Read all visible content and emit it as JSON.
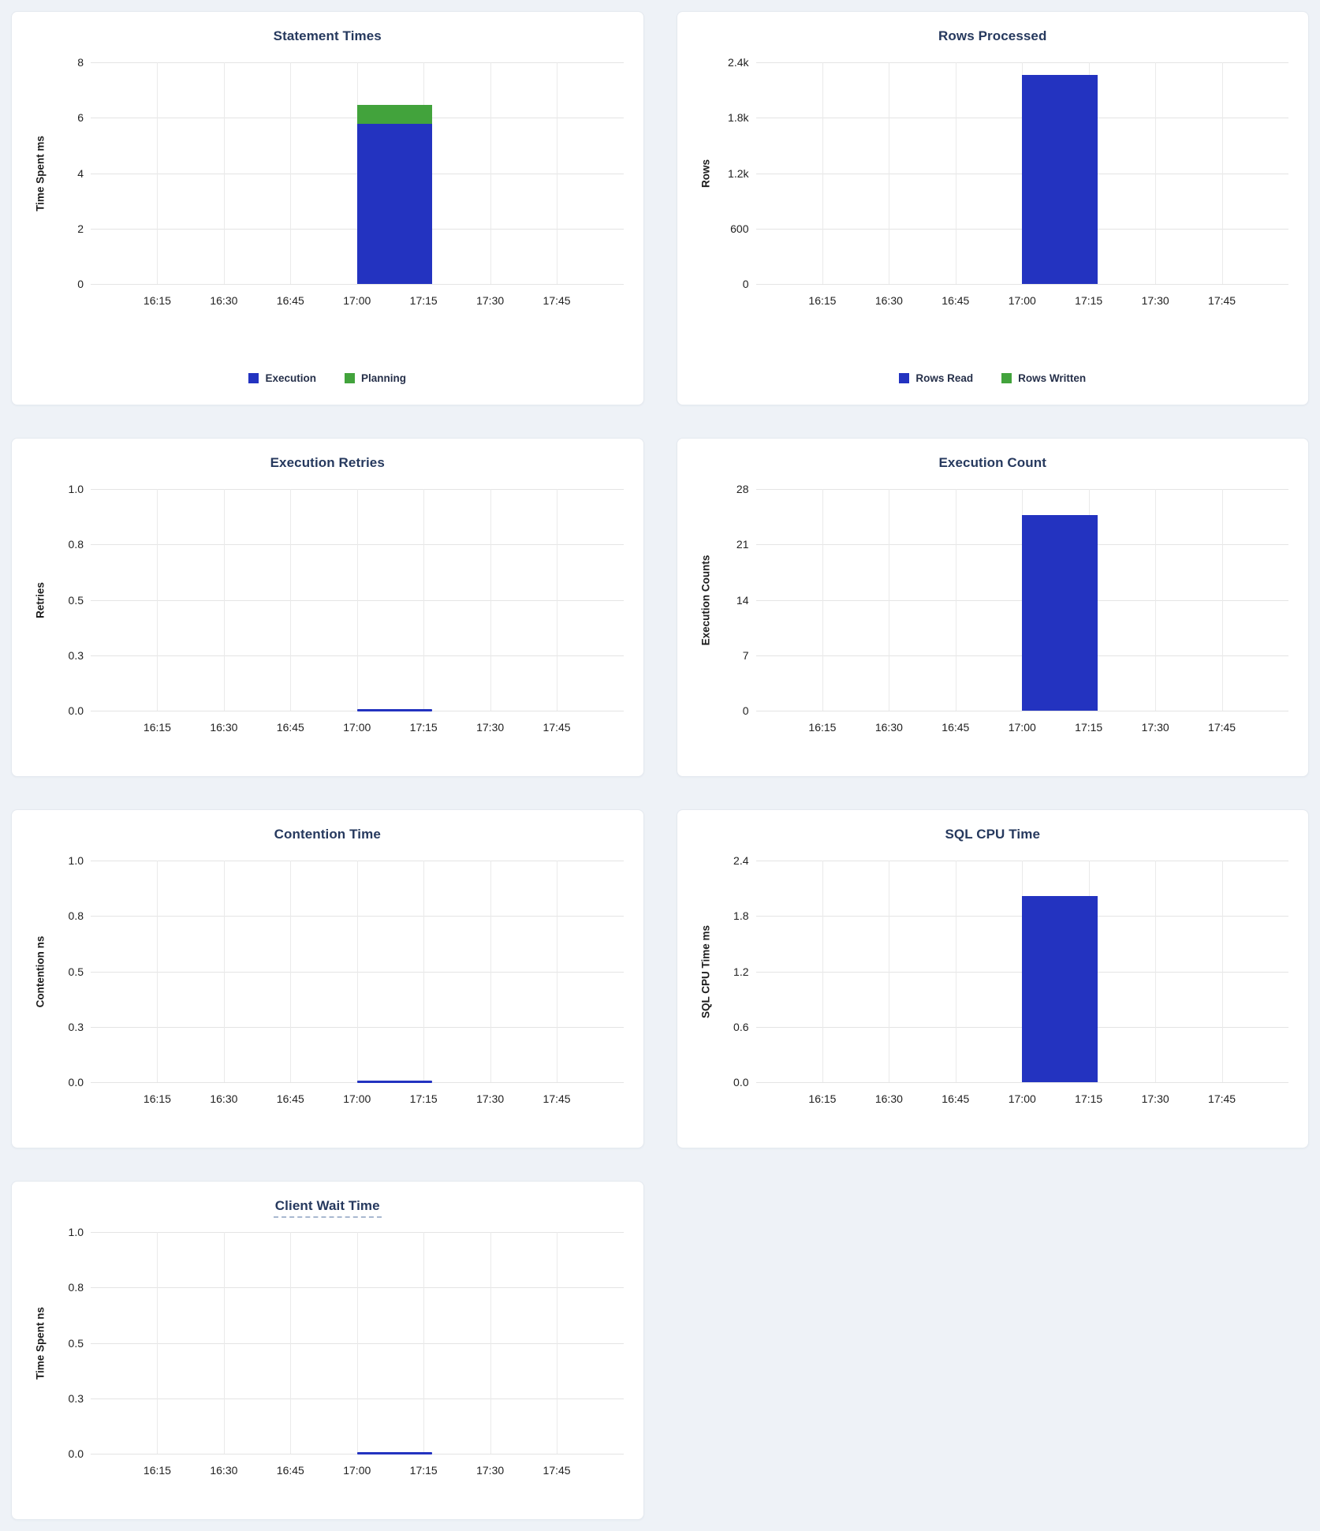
{
  "page": {
    "background": "#eef2f7"
  },
  "colors": {
    "bar_blue": "#2333c0",
    "bar_green": "#42a33c",
    "title_navy": "#26395e",
    "grid_line": "#e4e4e4",
    "panel_background": "#ffffff",
    "panel_border": "#e4e9ef",
    "tooltip_underline": "#a9b8d0"
  },
  "chart_data": [
    {
      "id": "statement-times",
      "type": "bar",
      "title": "Statement Times",
      "ylabel": "Time Spent ms",
      "ylim": [
        0,
        8
      ],
      "y_tick_labels_bottom_to_top": [
        "0",
        "2",
        "4",
        "6",
        "8"
      ],
      "x_tick_labels": [
        "16:15",
        "16:30",
        "16:45",
        "17:00",
        "17:15",
        "17:30",
        "17:45"
      ],
      "x_range": [
        "16:00",
        "18:00"
      ],
      "stacked": true,
      "series": [
        {
          "name": "Execution",
          "color": "#2333c0",
          "points": [
            {
              "x_start": "17:00",
              "x_end": "17:17",
              "y": 5.77
            }
          ]
        },
        {
          "name": "Planning",
          "color": "#42a33c",
          "points": [
            {
              "x_start": "17:00",
              "x_end": "17:17",
              "y": 0.68
            }
          ]
        }
      ],
      "legend": [
        {
          "label": "Execution",
          "color": "#2333c0"
        },
        {
          "label": "Planning",
          "color": "#42a33c"
        }
      ]
    },
    {
      "id": "rows-processed",
      "type": "bar",
      "title": "Rows Processed",
      "ylabel": "Rows",
      "ylim": [
        0,
        2400
      ],
      "y_tick_labels_bottom_to_top": [
        "0",
        "600",
        "1.2k",
        "1.8k",
        "2.4k"
      ],
      "x_tick_labels": [
        "16:15",
        "16:30",
        "16:45",
        "17:00",
        "17:15",
        "17:30",
        "17:45"
      ],
      "x_range": [
        "16:00",
        "18:00"
      ],
      "stacked": true,
      "series": [
        {
          "name": "Rows Read",
          "color": "#2333c0",
          "points": [
            {
              "x_start": "17:00",
              "x_end": "17:17",
              "y": 2260
            }
          ]
        },
        {
          "name": "Rows Written",
          "color": "#42a33c",
          "points": [
            {
              "x_start": "17:00",
              "x_end": "17:17",
              "y": 0
            }
          ]
        }
      ],
      "legend": [
        {
          "label": "Rows Read",
          "color": "#2333c0"
        },
        {
          "label": "Rows Written",
          "color": "#42a33c"
        }
      ]
    },
    {
      "id": "execution-retries",
      "type": "line",
      "title": "Execution Retries",
      "ylabel": "Retries",
      "ylim": [
        0,
        1
      ],
      "y_tick_labels_bottom_to_top": [
        "0.0",
        "0.3",
        "0.5",
        "0.8",
        "1.0"
      ],
      "x_tick_labels": [
        "16:15",
        "16:30",
        "16:45",
        "17:00",
        "17:15",
        "17:30",
        "17:45"
      ],
      "x_range": [
        "16:00",
        "18:00"
      ],
      "series": [
        {
          "name": "Retries",
          "color": "#2333c0",
          "points": [
            {
              "x_start": "17:00",
              "x_end": "17:17",
              "y": 0
            }
          ]
        }
      ],
      "legend": null
    },
    {
      "id": "execution-count",
      "type": "bar",
      "title": "Execution Count",
      "ylabel": "Execution Counts",
      "ylim": [
        0,
        28
      ],
      "y_tick_labels_bottom_to_top": [
        "0",
        "7",
        "14",
        "21",
        "28"
      ],
      "x_tick_labels": [
        "16:15",
        "16:30",
        "16:45",
        "17:00",
        "17:15",
        "17:30",
        "17:45"
      ],
      "x_range": [
        "16:00",
        "18:00"
      ],
      "series": [
        {
          "name": "Execution Count",
          "color": "#2333c0",
          "points": [
            {
              "x_start": "17:00",
              "x_end": "17:17",
              "y": 24.7
            }
          ]
        }
      ],
      "legend": null
    },
    {
      "id": "contention-time",
      "type": "line",
      "title": "Contention Time",
      "ylabel": "Contention ns",
      "ylim": [
        0,
        1
      ],
      "y_tick_labels_bottom_to_top": [
        "0.0",
        "0.3",
        "0.5",
        "0.8",
        "1.0"
      ],
      "x_tick_labels": [
        "16:15",
        "16:30",
        "16:45",
        "17:00",
        "17:15",
        "17:30",
        "17:45"
      ],
      "x_range": [
        "16:00",
        "18:00"
      ],
      "series": [
        {
          "name": "Contention",
          "color": "#2333c0",
          "points": [
            {
              "x_start": "17:00",
              "x_end": "17:17",
              "y": 0
            }
          ]
        }
      ],
      "legend": null
    },
    {
      "id": "sql-cpu-time",
      "type": "bar",
      "title": "SQL CPU Time",
      "ylabel": "SQL CPU Time ms",
      "ylim": [
        0,
        2.4
      ],
      "y_tick_labels_bottom_to_top": [
        "0.0",
        "0.6",
        "1.2",
        "1.8",
        "2.4"
      ],
      "x_tick_labels": [
        "16:15",
        "16:30",
        "16:45",
        "17:00",
        "17:15",
        "17:30",
        "17:45"
      ],
      "x_range": [
        "16:00",
        "18:00"
      ],
      "series": [
        {
          "name": "SQL CPU Time",
          "color": "#2333c0",
          "points": [
            {
              "x_start": "17:00",
              "x_end": "17:17",
              "y": 2.02
            }
          ]
        }
      ],
      "legend": null
    },
    {
      "id": "client-wait-time",
      "type": "line",
      "title": "Client Wait Time",
      "title_has_tooltip_underline": true,
      "ylabel": "Time Spent ns",
      "ylim": [
        0,
        1
      ],
      "y_tick_labels_bottom_to_top": [
        "0.0",
        "0.3",
        "0.5",
        "0.8",
        "1.0"
      ],
      "x_tick_labels": [
        "16:15",
        "16:30",
        "16:45",
        "17:00",
        "17:15",
        "17:30",
        "17:45"
      ],
      "x_range": [
        "16:00",
        "18:00"
      ],
      "series": [
        {
          "name": "Client Wait",
          "color": "#2333c0",
          "points": [
            {
              "x_start": "17:00",
              "x_end": "17:17",
              "y": 0
            }
          ]
        }
      ],
      "legend": null
    }
  ]
}
